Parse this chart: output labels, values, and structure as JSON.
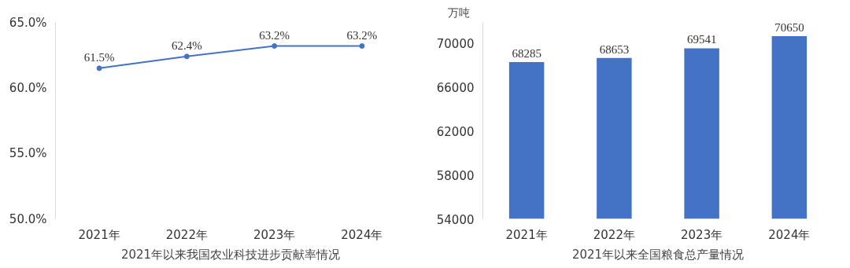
{
  "chart_data": [
    {
      "type": "line",
      "xlabel": "2021年以来我国农业科技进步贡献率情况",
      "categories": [
        "2021年",
        "2022年",
        "2023年",
        "2024年"
      ],
      "series": [
        {
          "color": "#4472c4",
          "values": [
            61.5,
            62.4,
            63.2,
            63.2
          ],
          "value_labels": [
            "61.5%",
            "62.4%",
            "63.2%",
            "63.2%"
          ]
        }
      ],
      "ylim": [
        50,
        65
      ],
      "yticks": [
        {
          "value": 50,
          "label": "50.0%"
        },
        {
          "value": 55,
          "label": "55.0%"
        },
        {
          "value": 60,
          "label": "60.0%"
        },
        {
          "value": 65,
          "label": "65.0%"
        }
      ],
      "marker": "circle",
      "line_style": "solid",
      "grid": false
    },
    {
      "type": "bar",
      "xlabel": "2021年以来全国粮食总产量情况",
      "ylabel": "万吨",
      "categories": [
        "2021年",
        "2022年",
        "2023年",
        "2024年"
      ],
      "series": [
        {
          "color": "#4472c4",
          "values": [
            68285,
            68653,
            69541,
            70650
          ]
        }
      ],
      "ylim": [
        54000,
        71900
      ],
      "yticks": [
        54000,
        58000,
        62000,
        66000,
        70000
      ],
      "data_labels": true,
      "grid": false
    }
  ]
}
